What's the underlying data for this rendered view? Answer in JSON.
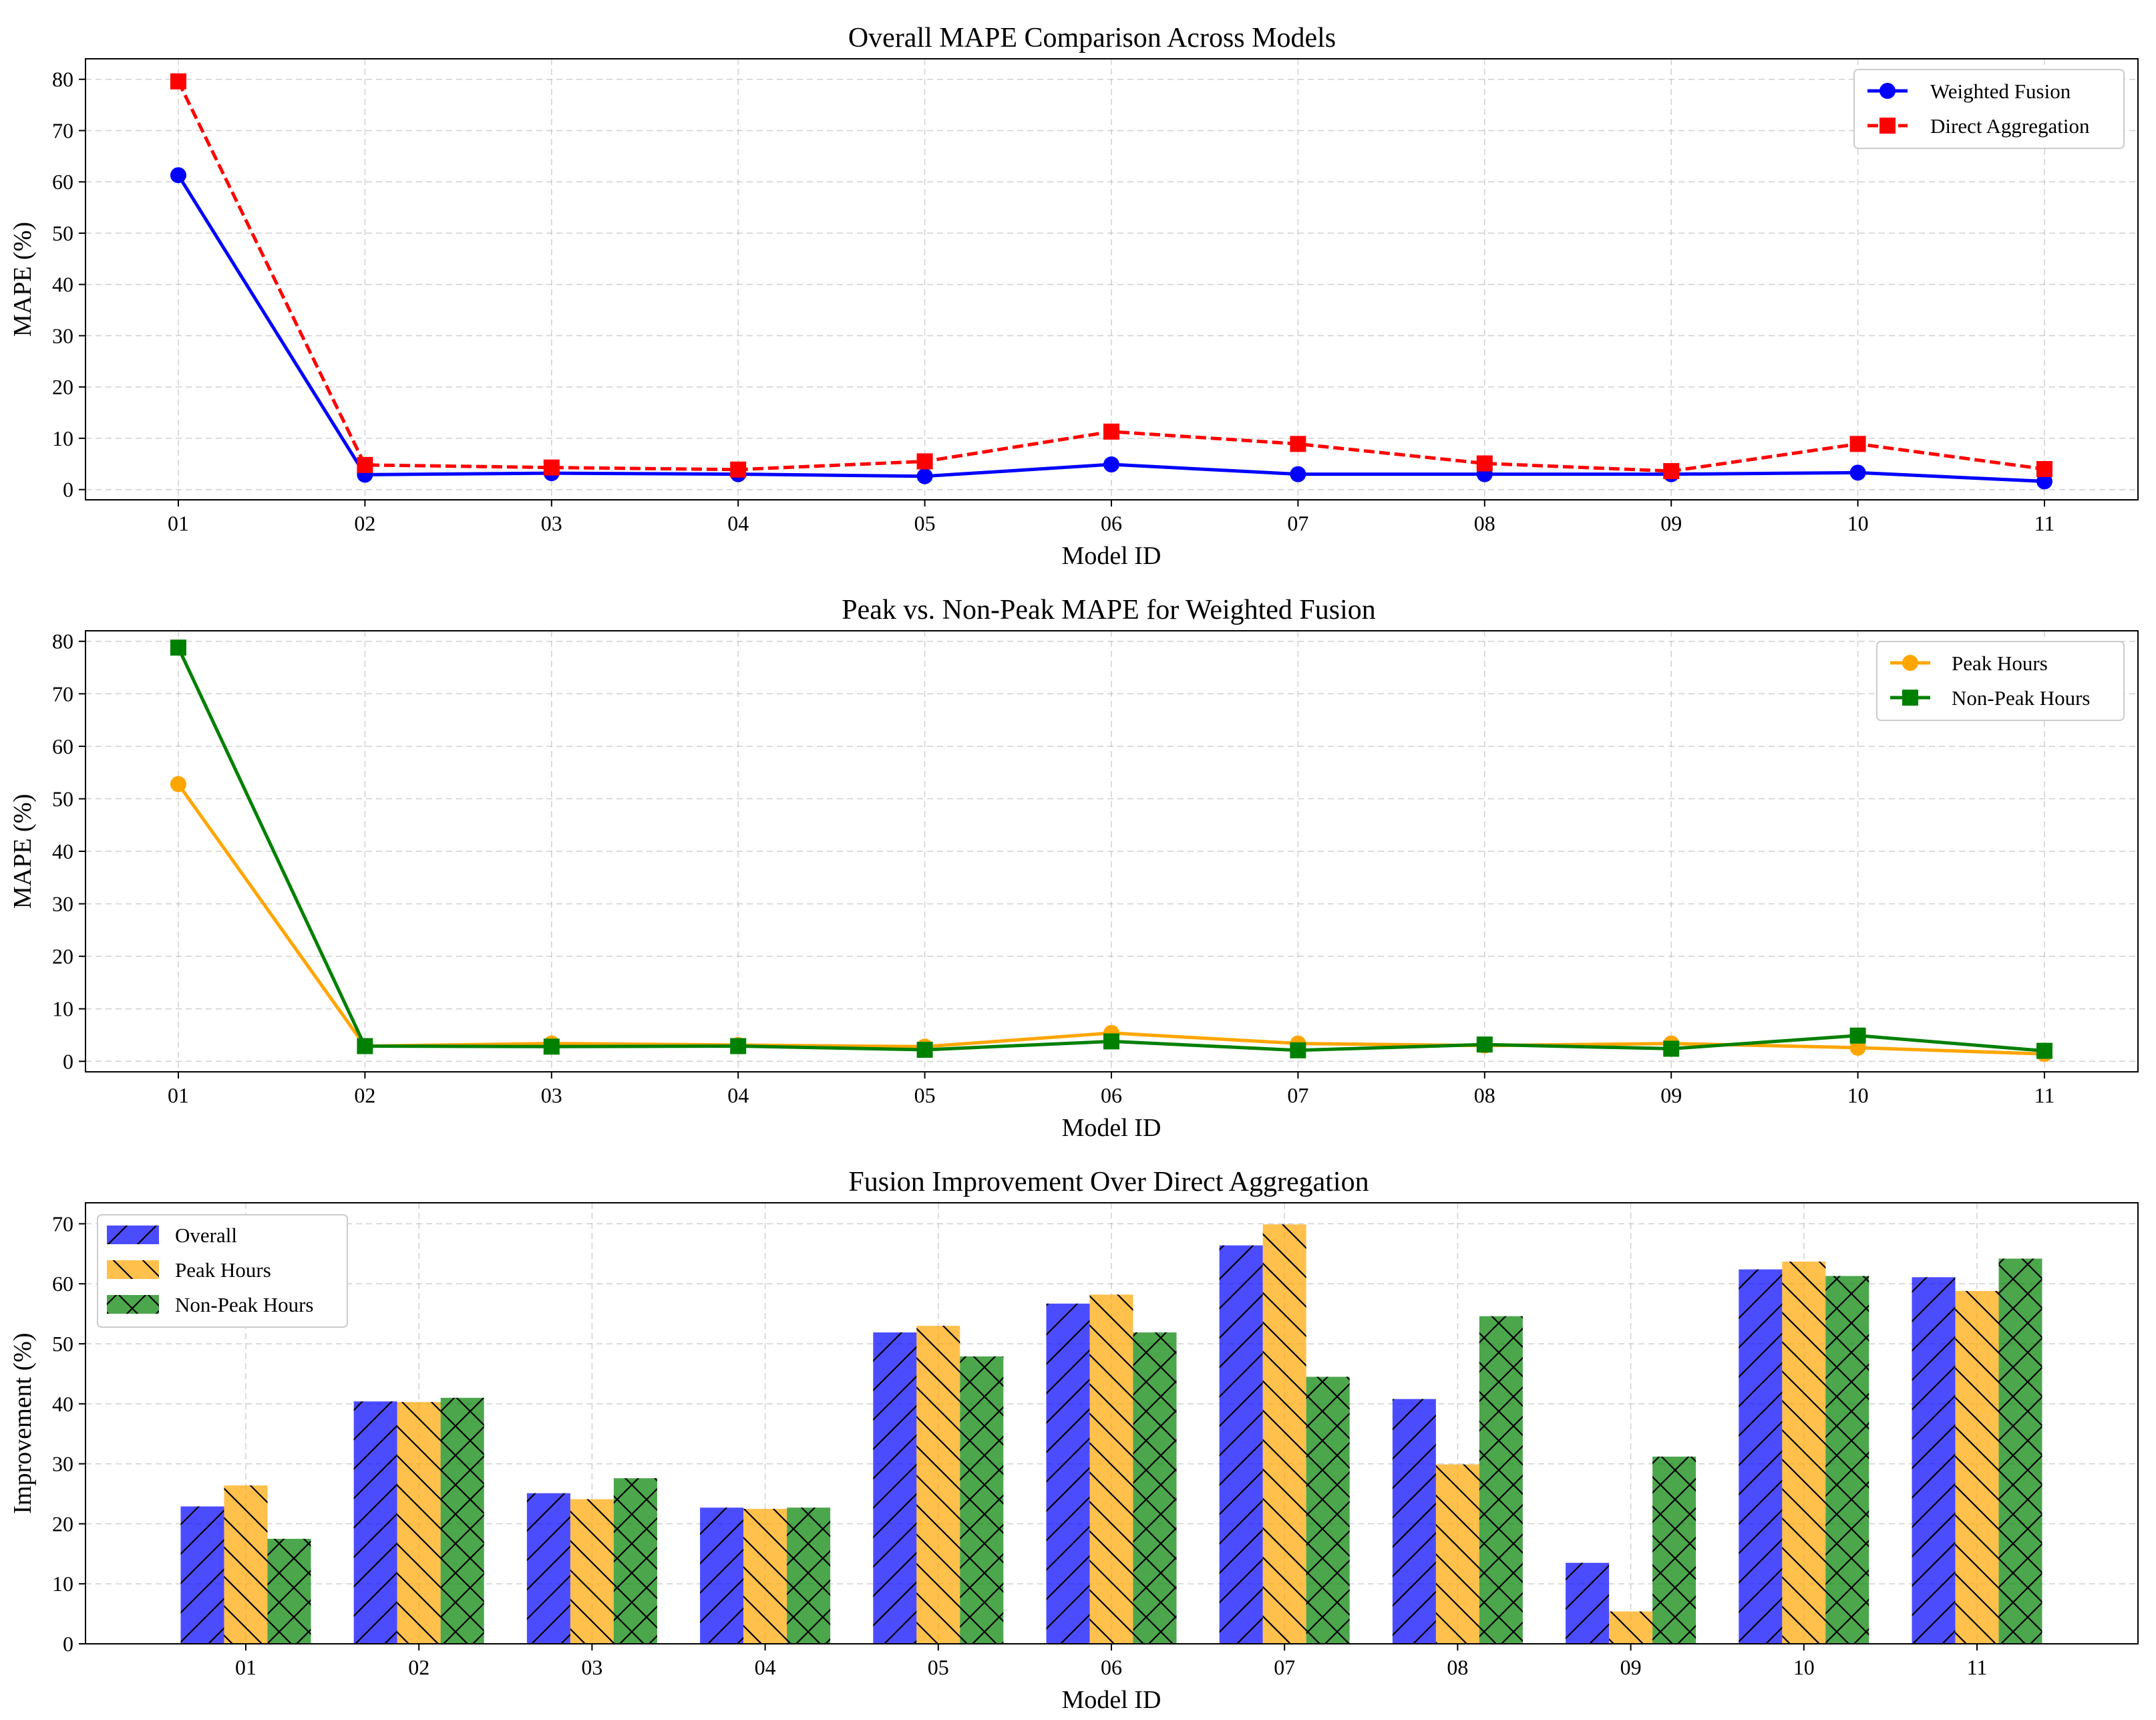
{
  "chart_data": [
    {
      "type": "line",
      "title": "Overall MAPE Comparison Across Models",
      "xlabel": "Model ID",
      "ylabel": "MAPE (%)",
      "categories": [
        "01",
        "02",
        "03",
        "04",
        "05",
        "06",
        "07",
        "08",
        "09",
        "10",
        "11"
      ],
      "ylim": [
        -2,
        84
      ],
      "yticks": [
        0,
        10,
        20,
        30,
        40,
        50,
        60,
        70,
        80
      ],
      "grid": true,
      "legend_position": "top-right",
      "series": [
        {
          "name": "Weighted Fusion",
          "color": "#0000ff",
          "marker": "circle",
          "dashed": false,
          "values": [
            61.3,
            2.9,
            3.2,
            3.0,
            2.6,
            4.9,
            3.0,
            3.0,
            3.0,
            3.3,
            1.6
          ]
        },
        {
          "name": "Direct Aggregation",
          "color": "#ff0000",
          "marker": "square",
          "dashed": true,
          "values": [
            79.6,
            4.8,
            4.3,
            3.9,
            5.5,
            11.3,
            8.9,
            5.1,
            3.6,
            8.9,
            4.0
          ]
        }
      ]
    },
    {
      "type": "line",
      "title": "Peak vs. Non-Peak MAPE for Weighted Fusion",
      "xlabel": "Model ID",
      "ylabel": "MAPE (%)",
      "categories": [
        "01",
        "02",
        "03",
        "04",
        "05",
        "06",
        "07",
        "08",
        "09",
        "10",
        "11"
      ],
      "ylim": [
        -2,
        82
      ],
      "yticks": [
        0,
        10,
        20,
        30,
        40,
        50,
        60,
        70,
        80
      ],
      "grid": true,
      "legend_position": "top-right",
      "series": [
        {
          "name": "Peak Hours",
          "color": "#ffa500",
          "marker": "circle",
          "dashed": false,
          "values": [
            52.8,
            2.9,
            3.4,
            3.1,
            2.8,
            5.4,
            3.4,
            3.0,
            3.4,
            2.6,
            1.4
          ]
        },
        {
          "name": "Non-Peak Hours",
          "color": "#008000",
          "marker": "square",
          "dashed": false,
          "values": [
            78.8,
            2.9,
            2.8,
            2.9,
            2.2,
            3.8,
            2.1,
            3.2,
            2.4,
            4.9,
            2.0
          ]
        }
      ]
    },
    {
      "type": "bar",
      "title": "Fusion Improvement Over Direct Aggregation",
      "xlabel": "Model ID",
      "ylabel": "Improvement (%)",
      "categories": [
        "01",
        "02",
        "03",
        "04",
        "05",
        "06",
        "07",
        "08",
        "09",
        "10",
        "11"
      ],
      "ylim": [
        0,
        73.5
      ],
      "yticks": [
        0,
        10,
        20,
        30,
        40,
        50,
        60,
        70
      ],
      "grid": true,
      "legend_position": "top-left",
      "series": [
        {
          "name": "Overall",
          "color": "#0000ff",
          "hatch": "forward",
          "values": [
            22.9,
            40.4,
            25.1,
            22.7,
            51.9,
            56.7,
            66.4,
            40.8,
            13.5,
            62.4,
            61.1
          ]
        },
        {
          "name": "Peak Hours",
          "color": "#ffa500",
          "hatch": "backward",
          "values": [
            26.4,
            40.3,
            24.1,
            22.5,
            53.0,
            58.2,
            69.9,
            29.9,
            5.4,
            63.7,
            58.8
          ]
        },
        {
          "name": "Non-Peak Hours",
          "color": "#008000",
          "hatch": "cross",
          "values": [
            17.5,
            41.0,
            27.6,
            22.7,
            47.9,
            51.9,
            44.5,
            54.6,
            31.2,
            61.3,
            64.2
          ]
        }
      ]
    }
  ]
}
